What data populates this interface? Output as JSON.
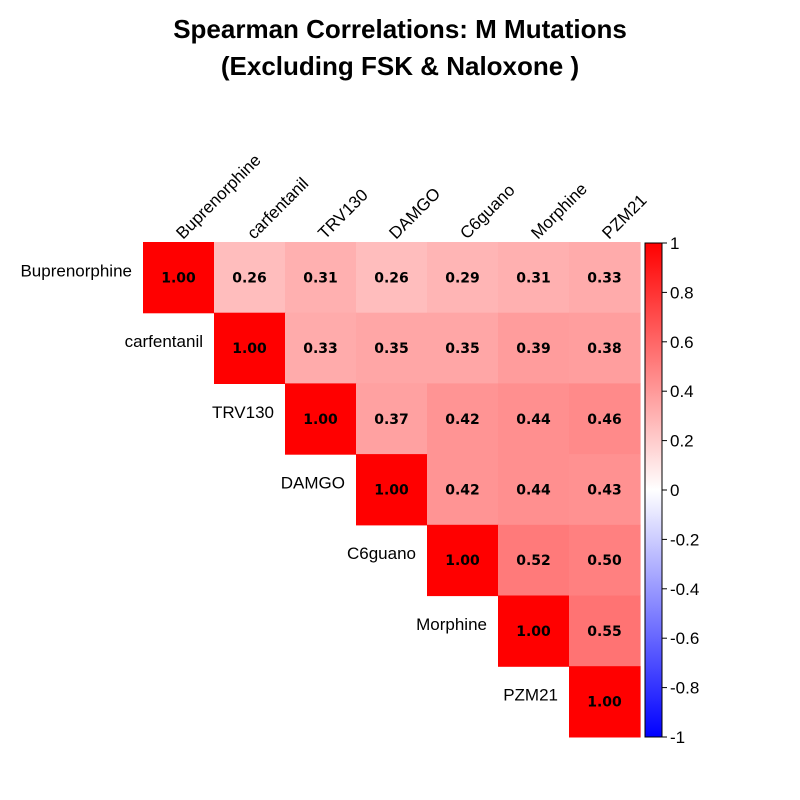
{
  "chart_data": {
    "type": "heatmap",
    "title_lines": [
      "Spearman Correlations: M Mutations",
      "(Excluding FSK & Naloxone )"
    ],
    "variables": [
      "Buprenorphine",
      "carfentanil",
      "TRV130",
      "DAMGO",
      "C6guano",
      "Morphine",
      "PZM21"
    ],
    "matrix_upper": [
      [
        1.0,
        0.26,
        0.31,
        0.26,
        0.29,
        0.31,
        0.33
      ],
      [
        null,
        1.0,
        0.33,
        0.35,
        0.35,
        0.39,
        0.38
      ],
      [
        null,
        null,
        1.0,
        0.37,
        0.42,
        0.44,
        0.46
      ],
      [
        null,
        null,
        null,
        1.0,
        0.42,
        0.44,
        0.43
      ],
      [
        null,
        null,
        null,
        null,
        1.0,
        0.52,
        0.5
      ],
      [
        null,
        null,
        null,
        null,
        null,
        1.0,
        0.55
      ],
      [
        null,
        null,
        null,
        null,
        null,
        null,
        1.0
      ]
    ],
    "value_labels": [
      [
        "1.00",
        "0.26",
        "0.31",
        "0.26",
        "0.29",
        "0.31",
        "0.33"
      ],
      [
        null,
        "1.00",
        "0.33",
        "0.35",
        "0.35",
        "0.39",
        "0.38"
      ],
      [
        null,
        null,
        "1.00",
        "0.37",
        "0.42",
        "0.44",
        "0.46"
      ],
      [
        null,
        null,
        null,
        "1.00",
        "0.42",
        "0.44",
        "0.43"
      ],
      [
        null,
        null,
        null,
        null,
        "1.00",
        "0.52",
        "0.50"
      ],
      [
        null,
        null,
        null,
        null,
        null,
        "1.00",
        "0.55"
      ],
      [
        null,
        null,
        null,
        null,
        null,
        null,
        "1.00"
      ]
    ],
    "colorbar": {
      "range": [
        -1,
        1
      ],
      "ticks": [
        1,
        0.8,
        0.6,
        0.4,
        0.2,
        0,
        -0.2,
        -0.4,
        -0.6,
        -0.8,
        -1
      ],
      "tick_labels": [
        "1",
        "0.8",
        "0.6",
        "0.4",
        "0.2",
        "0",
        "-0.2",
        "-0.4",
        "-0.6",
        "-0.8",
        "-1"
      ],
      "colors": {
        "low": "#0000FF",
        "mid": "#FFFFFF",
        "high": "#FF0000"
      },
      "placement": "right"
    },
    "layout": "upper-triangle, column labels on top rotated, row labels on left"
  }
}
